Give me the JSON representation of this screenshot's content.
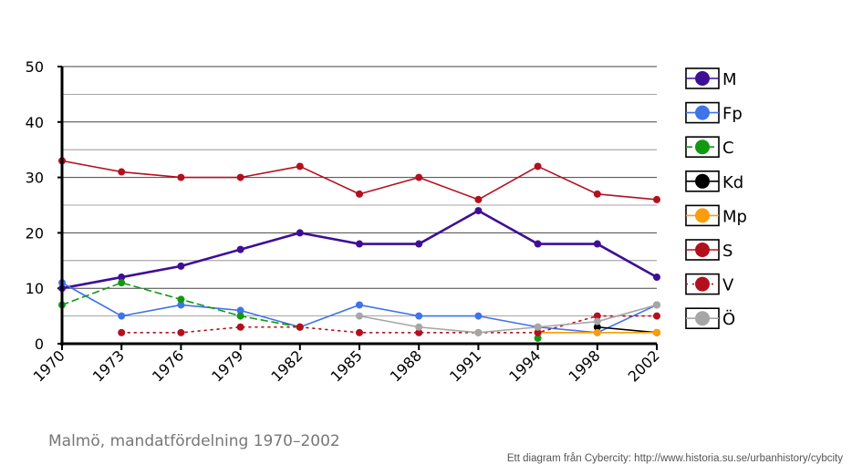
{
  "chart_data": {
    "type": "line",
    "title": "Malmö, mandatfördelning 1970–2002",
    "xlabel": "",
    "ylabel": "",
    "ylim": [
      0,
      50
    ],
    "yticks": [
      0,
      10,
      20,
      30,
      40,
      50
    ],
    "categories": [
      "1970",
      "1973",
      "1976",
      "1979",
      "1982",
      "1985",
      "1988",
      "1991",
      "1994",
      "1998",
      "2002"
    ],
    "grid": true,
    "legend_position": "right",
    "series": [
      {
        "name": "M",
        "color": "#3d0f96",
        "style": "solid",
        "values": [
          10,
          12,
          14,
          17,
          20,
          18,
          18,
          24,
          18,
          18,
          12
        ]
      },
      {
        "name": "Fp",
        "color": "#3f73e8",
        "style": "solid",
        "values": [
          11,
          5,
          7,
          6,
          3,
          7,
          5,
          5,
          3,
          2,
          7
        ]
      },
      {
        "name": "C",
        "color": "#119911",
        "style": "dashed",
        "values": [
          7,
          11,
          8,
          5,
          3,
          null,
          null,
          null,
          1,
          null,
          null
        ]
      },
      {
        "name": "Kd",
        "color": "#000000",
        "style": "solid",
        "values": [
          null,
          null,
          null,
          null,
          null,
          null,
          null,
          null,
          null,
          3,
          2
        ]
      },
      {
        "name": "Mp",
        "color": "#f99d0c",
        "style": "solid",
        "values": [
          null,
          null,
          null,
          null,
          null,
          null,
          null,
          null,
          2,
          2,
          2
        ]
      },
      {
        "name": "S",
        "color": "#b3101e",
        "style": "solid",
        "values": [
          33,
          31,
          30,
          30,
          32,
          27,
          30,
          26,
          32,
          27,
          26
        ]
      },
      {
        "name": "V",
        "color": "#b3101e",
        "style": "dotted",
        "values": [
          null,
          2,
          2,
          3,
          3,
          2,
          2,
          2,
          2,
          5,
          5
        ]
      },
      {
        "name": "Ö",
        "color": "#a6a6a6",
        "style": "solid",
        "values": [
          null,
          null,
          null,
          null,
          null,
          5,
          3,
          2,
          3,
          4,
          7
        ]
      }
    ]
  },
  "caption": "Malmö, mandatfördelning 1970–2002",
  "credit": "Ett diagram från Cybercity: http://www.historia.su.se/urbanhistory/cybcity"
}
